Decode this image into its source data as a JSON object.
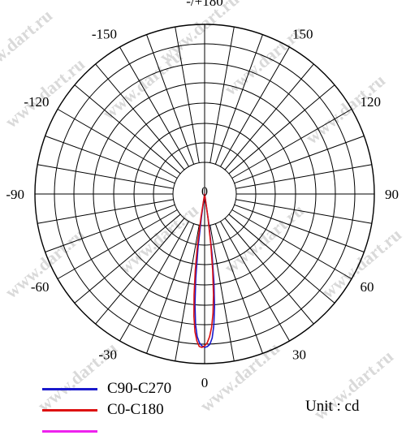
{
  "chart_data": {
    "type": "polar",
    "title": "",
    "unit_label": "Unit : cd",
    "radial_max": 1,
    "grid": true,
    "angle_labels": [
      {
        "angle": 180,
        "text": "-/+180"
      },
      {
        "angle": 150,
        "text": "150"
      },
      {
        "angle": -150,
        "text": "-150"
      },
      {
        "angle": 120,
        "text": "120"
      },
      {
        "angle": -120,
        "text": "-120"
      },
      {
        "angle": 90,
        "text": "90"
      },
      {
        "angle": -90,
        "text": "-90"
      },
      {
        "angle": 60,
        "text": "60"
      },
      {
        "angle": -60,
        "text": "-60"
      },
      {
        "angle": 30,
        "text": "30"
      },
      {
        "angle": -30,
        "text": "-30"
      },
      {
        "angle": 0,
        "text": "0"
      }
    ],
    "center_label": "0",
    "series": [
      {
        "name": "C90-C270",
        "color": "#1a1acc",
        "points": [
          [
            -9,
            0.0
          ],
          [
            -8,
            0.15
          ],
          [
            -7,
            0.35
          ],
          [
            -6,
            0.55
          ],
          [
            -5,
            0.72
          ],
          [
            -4,
            0.85
          ],
          [
            -3,
            0.93
          ],
          [
            -2,
            0.97
          ],
          [
            -1,
            0.99
          ],
          [
            0,
            1.0
          ],
          [
            1,
            0.995
          ],
          [
            2,
            0.98
          ],
          [
            3,
            0.94
          ],
          [
            4,
            0.86
          ],
          [
            5,
            0.74
          ],
          [
            6,
            0.58
          ],
          [
            7,
            0.4
          ],
          [
            8,
            0.2
          ],
          [
            9,
            0.0
          ]
        ]
      },
      {
        "name": "C0-C180",
        "color": "#dd1111",
        "points": [
          [
            -10,
            0.0
          ],
          [
            -9,
            0.15
          ],
          [
            -8,
            0.33
          ],
          [
            -7,
            0.5
          ],
          [
            -6,
            0.66
          ],
          [
            -5,
            0.8
          ],
          [
            -4,
            0.9
          ],
          [
            -3,
            0.96
          ],
          [
            -2,
            0.995
          ],
          [
            -1,
            1.0
          ],
          [
            0,
            0.99
          ],
          [
            1,
            0.97
          ],
          [
            2,
            0.93
          ],
          [
            3,
            0.87
          ],
          [
            4,
            0.78
          ],
          [
            5,
            0.66
          ],
          [
            6,
            0.5
          ],
          [
            7,
            0.33
          ],
          [
            8,
            0.16
          ],
          [
            9,
            0.0
          ]
        ]
      },
      {
        "name": "",
        "color": "#ee22ee",
        "points": []
      }
    ]
  },
  "legend": [
    {
      "label": "C90-C270",
      "color": "#1a1acc"
    },
    {
      "label": "C0-C180",
      "color": "#dd1111"
    },
    {
      "label": "",
      "color": "#ee22ee"
    }
  ],
  "watermark": "www.dart.ru"
}
